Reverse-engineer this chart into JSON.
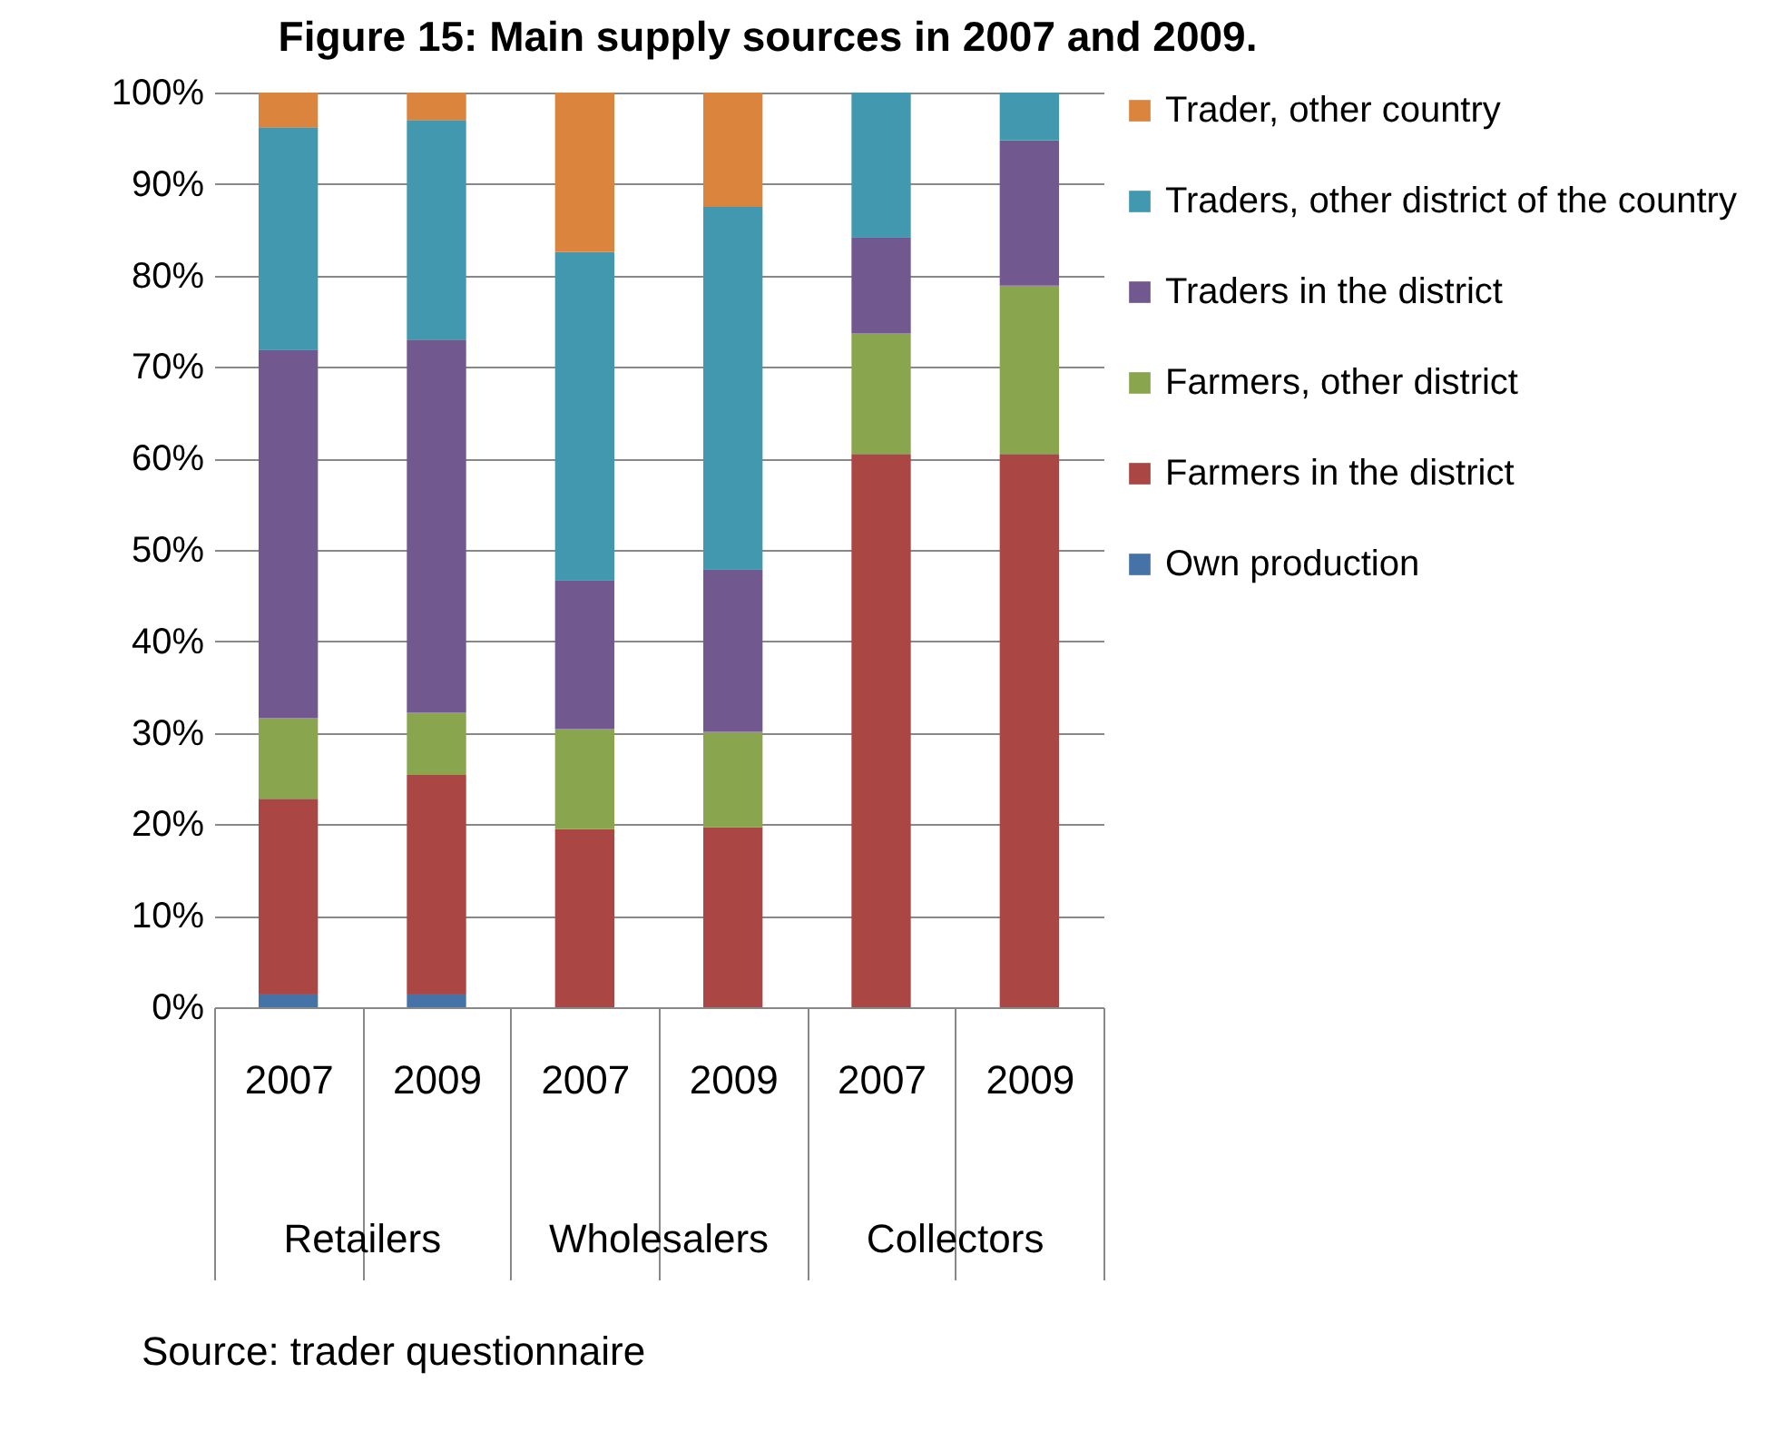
{
  "chart_data": {
    "type": "bar",
    "stacked": true,
    "title": "Figure 15:  Main supply sources in 2007 and 2009.",
    "categories": [
      "2007",
      "2009",
      "2007",
      "2009",
      "2007",
      "2009"
    ],
    "series": [
      {
        "name": "Own production",
        "color": "#4572a7",
        "values": [
          1.5,
          1.5,
          0,
          0,
          0,
          0
        ]
      },
      {
        "name": "Farmers in the district",
        "color": "#aa4643",
        "values": [
          21.3,
          23.9,
          19.5,
          19.7,
          60.5,
          60.5
        ]
      },
      {
        "name": "Farmers, other district",
        "color": "#89a54e",
        "values": [
          8.8,
          6.8,
          10.9,
          10.4,
          13.2,
          18.4
        ]
      },
      {
        "name": "Traders in the district",
        "color": "#71588f",
        "values": [
          40.3,
          40.8,
          16.3,
          17.8,
          10.5,
          15.9
        ]
      },
      {
        "name": "Traders, other district of the country",
        "color": "#4198af",
        "values": [
          24.3,
          24.0,
          35.9,
          39.6,
          15.8,
          5.2
        ]
      },
      {
        "name": "Trader, other country",
        "color": "#db843d",
        "values": [
          3.8,
          3.0,
          17.4,
          12.5,
          0,
          0
        ]
      }
    ],
    "annotations": [
      "Retailers",
      "Wholesalers",
      "Collectors",
      "Source: trader questionnaire"
    ],
    "ylim": [
      0,
      100
    ],
    "yticks": [
      {
        "value": 0,
        "label": "0%"
      },
      {
        "value": 10,
        "label": "10%"
      },
      {
        "value": 20,
        "label": "20%"
      },
      {
        "value": 30,
        "label": "30%"
      },
      {
        "value": 40,
        "label": "40%"
      },
      {
        "value": 50,
        "label": "50%"
      },
      {
        "value": 60,
        "label": "60%"
      },
      {
        "value": 70,
        "label": "70%"
      },
      {
        "value": 80,
        "label": "80%"
      },
      {
        "value": 90,
        "label": "90%"
      },
      {
        "value": 100,
        "label": "100%"
      }
    ],
    "grid": "y",
    "legend": "right"
  }
}
